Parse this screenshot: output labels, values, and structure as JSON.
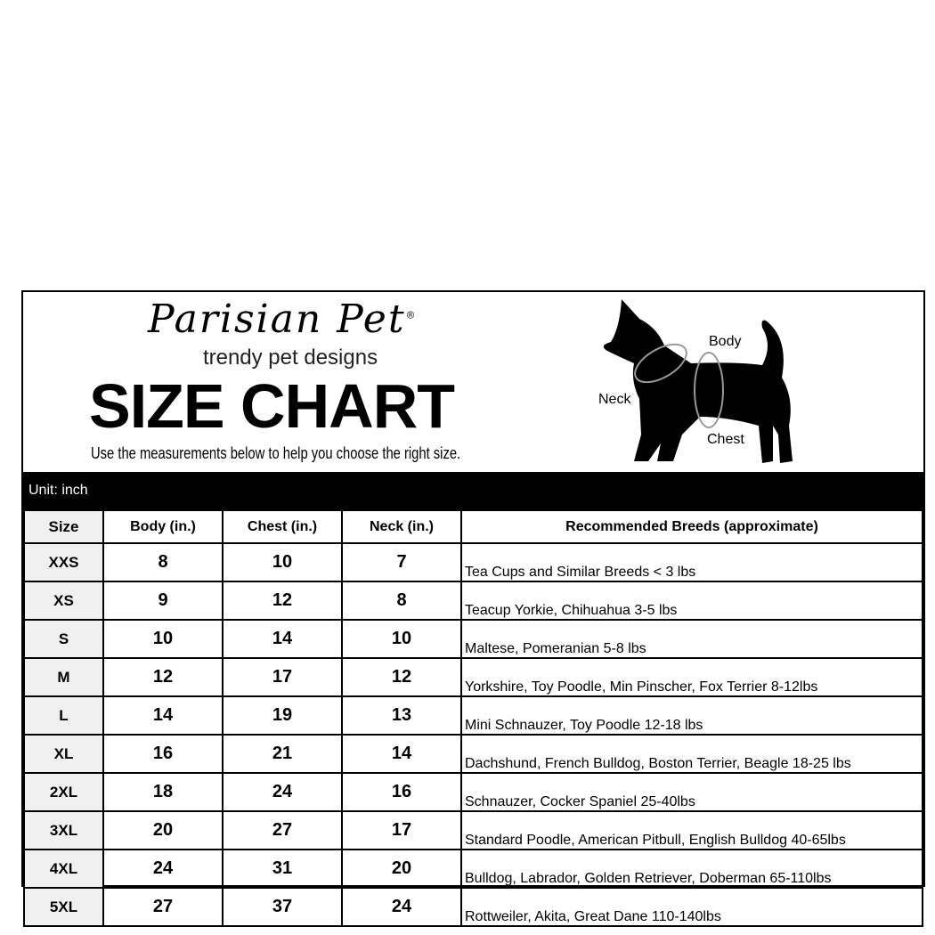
{
  "brand": {
    "logo": "Parisian Pet",
    "registered": "®",
    "tagline": "trendy pet designs"
  },
  "title": "SIZE CHART",
  "subtitle": "Use the measurements below to help you choose the right size.",
  "diagram": {
    "body": "Body",
    "neck": "Neck",
    "chest": "Chest"
  },
  "unit": "Unit: inch",
  "columns": [
    "Size",
    "Body (in.)",
    "Chest (in.)",
    "Neck (in.)",
    "Recommended Breeds (approximate)"
  ],
  "rows": [
    [
      "XXS",
      "8",
      "10",
      "7",
      "Tea Cups and Similar Breeds < 3 lbs"
    ],
    [
      "XS",
      "9",
      "12",
      "8",
      "Teacup Yorkie, Chihuahua 3-5 lbs"
    ],
    [
      "S",
      "10",
      "14",
      "10",
      "Maltese, Pomeranian 5-8 lbs"
    ],
    [
      "M",
      "12",
      "17",
      "12",
      "Yorkshire, Toy Poodle, Min Pinscher, Fox Terrier 8-12lbs"
    ],
    [
      "L",
      "14",
      "19",
      "13",
      "Mini Schnauzer, Toy Poodle 12-18 lbs"
    ],
    [
      "XL",
      "16",
      "21",
      "14",
      "Dachshund, French Bulldog, Boston Terrier, Beagle 18-25 lbs"
    ],
    [
      "2XL",
      "18",
      "24",
      "16",
      "Schnauzer, Cocker Spaniel 25-40lbs"
    ],
    [
      "3XL",
      "20",
      "27",
      "17",
      "Standard Poodle, American Pitbull, English Bulldog 40-65lbs"
    ],
    [
      "4XL",
      "24",
      "31",
      "20",
      "Bulldog, Labrador, Golden Retriever, Doberman 65-110lbs"
    ],
    [
      "5XL",
      "27",
      "37",
      "24",
      "Rottweiler, Akita, Great Dane 110-140lbs"
    ]
  ]
}
